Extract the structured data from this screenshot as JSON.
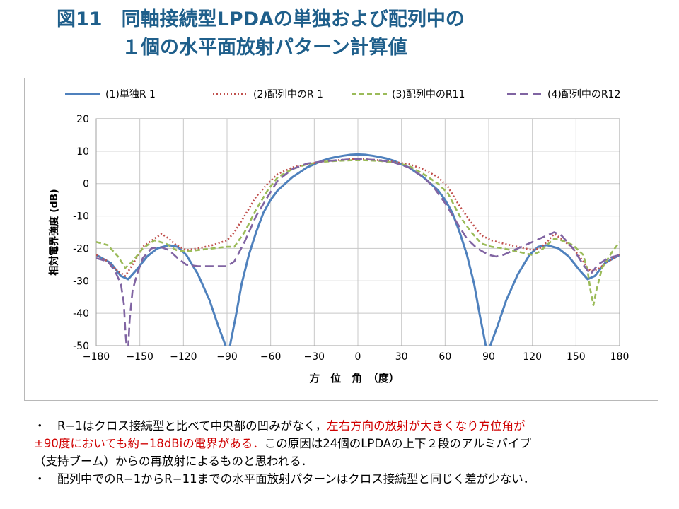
{
  "title": {
    "line1": "図11　同軸接続型LPDAの単独および配列中の",
    "line2": "１個の水平面放射パターン計算値"
  },
  "chart_data": {
    "type": "line",
    "xlabel": "方　位　角　（度）",
    "ylabel": "相対電界強度 (dB)",
    "xlim": [
      -180,
      180
    ],
    "ylim": [
      -50,
      20
    ],
    "xticks": [
      -180,
      -150,
      -120,
      -90,
      -60,
      -30,
      0,
      30,
      60,
      90,
      120,
      150,
      180
    ],
    "yticks": [
      20,
      10,
      0,
      -10,
      -20,
      -30,
      -40,
      -50
    ],
    "grid": true,
    "legend_position": "top",
    "series": [
      {
        "name": "(1)単独R 1",
        "color": "#4f81bd",
        "style": "solid",
        "segments": [
          [
            [
              -180,
              -22
            ],
            [
              -170,
              -24.5
            ],
            [
              -163,
              -28.5
            ],
            [
              -158,
              -29.5
            ],
            [
              -153,
              -27
            ],
            [
              -145,
              -22.5
            ],
            [
              -138,
              -20
            ],
            [
              -130,
              -19
            ],
            [
              -124,
              -19.5
            ],
            [
              -118,
              -22
            ],
            [
              -110,
              -28
            ],
            [
              -102,
              -36
            ],
            [
              -96,
              -44
            ],
            [
              -91,
              -50
            ]
          ],
          [
            [
              -88,
              -50
            ],
            [
              -84,
              -41
            ],
            [
              -80,
              -31
            ],
            [
              -75,
              -22
            ],
            [
              -70,
              -15
            ],
            [
              -65,
              -9
            ],
            [
              -60,
              -5
            ],
            [
              -55,
              -2
            ],
            [
              -50,
              0
            ],
            [
              -45,
              2
            ],
            [
              -40,
              3.5
            ],
            [
              -35,
              5
            ],
            [
              -30,
              6
            ],
            [
              -25,
              7
            ],
            [
              -20,
              7.7
            ],
            [
              -15,
              8.2
            ],
            [
              -10,
              8.6
            ],
            [
              -5,
              8.9
            ],
            [
              0,
              9
            ],
            [
              5,
              8.9
            ],
            [
              10,
              8.6
            ],
            [
              15,
              8.2
            ],
            [
              20,
              7.7
            ],
            [
              25,
              7
            ],
            [
              30,
              6
            ],
            [
              35,
              5
            ],
            [
              40,
              3.5
            ],
            [
              45,
              2
            ],
            [
              50,
              0
            ],
            [
              55,
              -2
            ],
            [
              60,
              -5
            ],
            [
              65,
              -9
            ],
            [
              70,
              -15
            ],
            [
              75,
              -22
            ],
            [
              80,
              -31
            ],
            [
              84,
              -41
            ],
            [
              88,
              -50
            ]
          ],
          [
            [
              91,
              -50
            ],
            [
              96,
              -44
            ],
            [
              102,
              -36
            ],
            [
              110,
              -28
            ],
            [
              118,
              -22
            ],
            [
              124,
              -19.5
            ],
            [
              130,
              -19
            ],
            [
              138,
              -20
            ],
            [
              145,
              -22.5
            ],
            [
              153,
              -27
            ],
            [
              158,
              -29.5
            ],
            [
              163,
              -28.5
            ],
            [
              170,
              -24.5
            ],
            [
              180,
              -22
            ]
          ]
        ]
      },
      {
        "name": "(2)配列中のR 1",
        "color": "#c0504d",
        "style": "dotted",
        "segments": [
          [
            [
              -180,
              -22
            ],
            [
              -172,
              -24
            ],
            [
              -165,
              -27
            ],
            [
              -160,
              -28.5
            ],
            [
              -155,
              -25
            ],
            [
              -148,
              -19.5
            ],
            [
              -140,
              -17
            ],
            [
              -135,
              -15.5
            ],
            [
              -130,
              -17
            ],
            [
              -125,
              -19
            ],
            [
              -118,
              -20.5
            ],
            [
              -110,
              -20
            ],
            [
              -100,
              -19
            ],
            [
              -90,
              -17.5
            ],
            [
              -85,
              -15
            ],
            [
              -78,
              -10
            ],
            [
              -70,
              -4
            ],
            [
              -62,
              0
            ],
            [
              -55,
              3
            ],
            [
              -45,
              5
            ],
            [
              -35,
              6
            ],
            [
              -25,
              6.7
            ],
            [
              -15,
              7.2
            ],
            [
              -5,
              7.5
            ],
            [
              0,
              7.5
            ],
            [
              5,
              7.5
            ],
            [
              15,
              7.2
            ],
            [
              25,
              6.7
            ],
            [
              35,
              6
            ],
            [
              45,
              4.5
            ],
            [
              55,
              2
            ],
            [
              62,
              -1
            ],
            [
              70,
              -7
            ],
            [
              78,
              -12
            ],
            [
              85,
              -16
            ],
            [
              92,
              -17.5
            ],
            [
              100,
              -18.5
            ],
            [
              110,
              -19.5
            ],
            [
              120,
              -20.5
            ],
            [
              125,
              -20
            ],
            [
              130,
              -18
            ],
            [
              135,
              -15.5
            ],
            [
              140,
              -17
            ],
            [
              148,
              -20
            ],
            [
              155,
              -24
            ],
            [
              160,
              -27
            ],
            [
              165,
              -26.5
            ],
            [
              172,
              -24
            ],
            [
              180,
              -22
            ]
          ]
        ]
      },
      {
        "name": "(3)配列中のR11",
        "color": "#9bbb59",
        "style": "dashed",
        "segments": [
          [
            [
              -180,
              -18
            ],
            [
              -172,
              -19
            ],
            [
              -165,
              -22.5
            ],
            [
              -160,
              -26
            ],
            [
              -155,
              -24
            ],
            [
              -148,
              -20
            ],
            [
              -140,
              -17.5
            ],
            [
              -132,
              -18.5
            ],
            [
              -125,
              -20.5
            ],
            [
              -118,
              -21
            ],
            [
              -110,
              -20.5
            ],
            [
              -100,
              -20
            ],
            [
              -90,
              -19.5
            ],
            [
              -85,
              -19.5
            ],
            [
              -78,
              -15
            ],
            [
              -70,
              -8
            ],
            [
              -62,
              -2
            ],
            [
              -55,
              2
            ],
            [
              -45,
              4.5
            ],
            [
              -35,
              6
            ],
            [
              -25,
              6.7
            ],
            [
              -15,
              7
            ],
            [
              -5,
              7.2
            ],
            [
              0,
              7.2
            ],
            [
              5,
              7.2
            ],
            [
              15,
              7
            ],
            [
              25,
              6.5
            ],
            [
              35,
              5.5
            ],
            [
              45,
              3
            ],
            [
              55,
              0
            ],
            [
              62,
              -3
            ],
            [
              70,
              -10
            ],
            [
              78,
              -15
            ],
            [
              85,
              -18.5
            ],
            [
              92,
              -19.5
            ],
            [
              100,
              -20
            ],
            [
              110,
              -21
            ],
            [
              120,
              -22
            ],
            [
              125,
              -21
            ],
            [
              130,
              -19
            ],
            [
              135,
              -17
            ],
            [
              140,
              -17.5
            ],
            [
              148,
              -19
            ],
            [
              155,
              -22
            ],
            [
              158,
              -27
            ],
            [
              160,
              -33
            ],
            [
              162,
              -37.5
            ],
            [
              164,
              -33
            ],
            [
              168,
              -26
            ],
            [
              175,
              -21
            ],
            [
              180,
              -18
            ]
          ]
        ]
      },
      {
        "name": "(4)配列中のR12",
        "color": "#8064a2",
        "style": "longdash",
        "segments": [
          [
            [
              -180,
              -23
            ],
            [
              -172,
              -24
            ],
            [
              -167,
              -27
            ],
            [
              -163,
              -31
            ],
            [
              -161,
              -37
            ],
            [
              -160,
              -45
            ],
            [
              -159,
              -51
            ]
          ],
          [
            [
              -158,
              -51
            ],
            [
              -157,
              -42
            ],
            [
              -155,
              -33
            ],
            [
              -152,
              -28
            ],
            [
              -148,
              -23
            ],
            [
              -142,
              -20
            ],
            [
              -136,
              -19.5
            ],
            [
              -130,
              -20.5
            ],
            [
              -124,
              -23
            ],
            [
              -118,
              -25
            ],
            [
              -110,
              -25.5
            ],
            [
              -100,
              -25.5
            ],
            [
              -90,
              -25.5
            ],
            [
              -85,
              -24
            ],
            [
              -78,
              -18
            ],
            [
              -70,
              -10
            ],
            [
              -62,
              -4
            ],
            [
              -55,
              1
            ],
            [
              -45,
              4.5
            ],
            [
              -35,
              6.2
            ],
            [
              -25,
              6.8
            ],
            [
              -15,
              7.2
            ],
            [
              -5,
              7.5
            ],
            [
              0,
              7.5
            ],
            [
              5,
              7.5
            ],
            [
              15,
              7.2
            ],
            [
              25,
              6.5
            ],
            [
              35,
              5
            ],
            [
              45,
              2
            ],
            [
              52,
              -1
            ],
            [
              60,
              -6
            ],
            [
              68,
              -12
            ],
            [
              75,
              -17
            ],
            [
              82,
              -20
            ],
            [
              90,
              -22
            ],
            [
              95,
              -22.5
            ],
            [
              100,
              -22
            ],
            [
              110,
              -20
            ],
            [
              120,
              -18
            ],
            [
              130,
              -16
            ],
            [
              135,
              -15
            ],
            [
              140,
              -16
            ],
            [
              148,
              -20
            ],
            [
              155,
              -25
            ],
            [
              160,
              -28
            ],
            [
              165,
              -25
            ],
            [
              172,
              -23
            ],
            [
              180,
              -22
            ]
          ]
        ]
      }
    ]
  },
  "notes": [
    {
      "parts": [
        {
          "text": "・　R−1はクロス接続型と比べて中央部の凹みがなく，",
          "emph": false
        },
        {
          "text": "左右方向の放射が大きくなり方位角が",
          "emph": true
        }
      ]
    },
    {
      "parts": [
        {
          "text": "±90度においても約−18dBiの電界がある．",
          "emph": true
        },
        {
          "text": "この原因は24個のLPDAの上下２段のアルミパイプ",
          "emph": false
        }
      ]
    },
    {
      "parts": [
        {
          "text": "（支持ブーム）からの再放射によるものと思われる．",
          "emph": false
        }
      ]
    },
    {
      "parts": [
        {
          "text": "・　配列中でのR−1からR−11までの水平面放射パターンはクロス接続型と同じく差が少ない．",
          "emph": false
        }
      ]
    }
  ]
}
